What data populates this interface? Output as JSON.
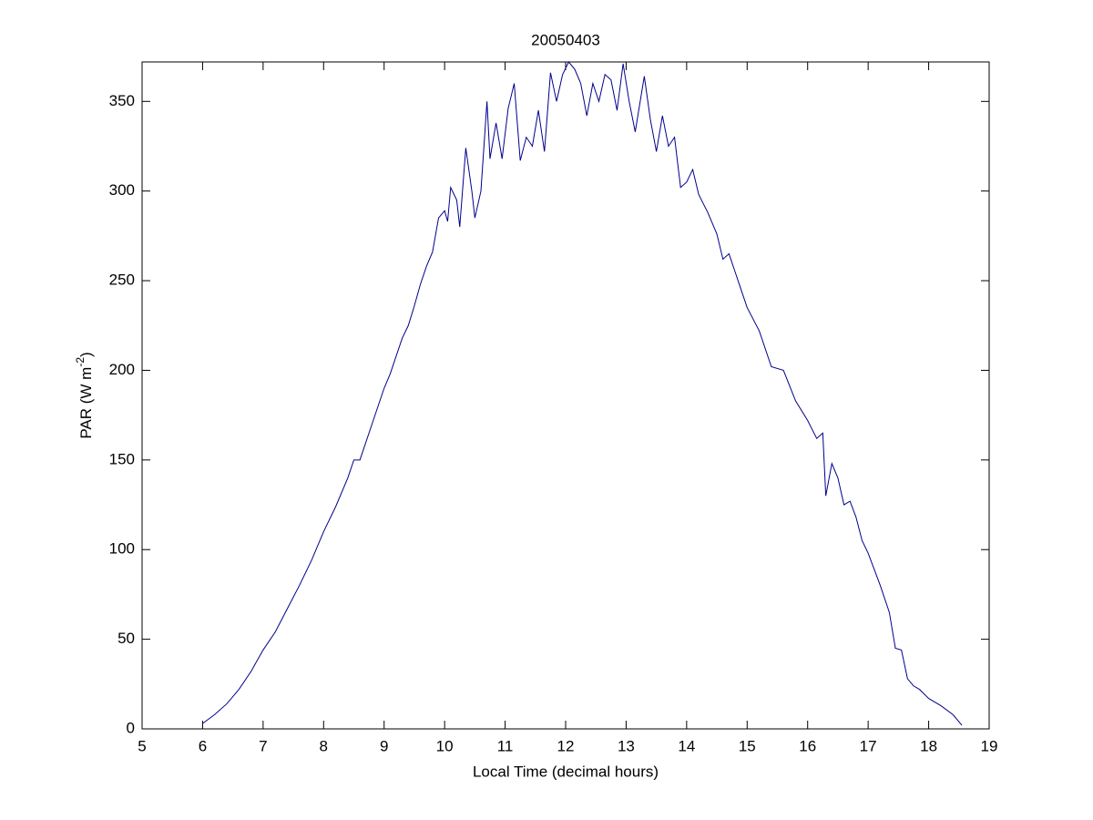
{
  "chart_data": {
    "type": "line",
    "title": "20050403",
    "x_label": "Local Time (decimal hours)",
    "y_label": [
      "PAR (W m",
      "-2",
      ")"
    ],
    "xlim": [
      5,
      19
    ],
    "xticks": [
      5,
      6,
      7,
      8,
      9,
      10,
      11,
      12,
      13,
      14,
      15,
      16,
      17,
      18,
      19
    ],
    "ylim": [
      0,
      372
    ],
    "yticks": [
      0,
      50,
      100,
      150,
      200,
      250,
      300,
      350
    ],
    "grid": false,
    "x": [
      6.0,
      6.2,
      6.4,
      6.6,
      6.8,
      7.0,
      7.2,
      7.4,
      7.6,
      7.8,
      8.0,
      8.2,
      8.4,
      8.5,
      8.6,
      8.8,
      9.0,
      9.1,
      9.2,
      9.3,
      9.4,
      9.5,
      9.6,
      9.7,
      9.8,
      9.9,
      10.0,
      10.05,
      10.1,
      10.2,
      10.25,
      10.35,
      10.45,
      10.5,
      10.6,
      10.7,
      10.75,
      10.85,
      10.95,
      11.05,
      11.15,
      11.25,
      11.35,
      11.45,
      11.55,
      11.65,
      11.75,
      11.85,
      11.95,
      12.05,
      12.15,
      12.25,
      12.35,
      12.45,
      12.55,
      12.65,
      12.75,
      12.85,
      12.95,
      13.05,
      13.15,
      13.3,
      13.4,
      13.5,
      13.6,
      13.7,
      13.8,
      13.9,
      14.0,
      14.1,
      14.2,
      14.35,
      14.5,
      14.6,
      14.7,
      14.8,
      14.9,
      15.0,
      15.2,
      15.4,
      15.6,
      15.8,
      16.0,
      16.15,
      16.25,
      16.3,
      16.4,
      16.5,
      16.6,
      16.7,
      16.8,
      16.9,
      17.0,
      17.2,
      17.35,
      17.45,
      17.55,
      17.65,
      17.75,
      17.85,
      18.0,
      18.2,
      18.4,
      18.55
    ],
    "series": [
      {
        "color": "#00008b",
        "values": [
          3,
          8,
          14,
          22,
          32,
          44,
          54,
          67,
          80,
          94,
          110,
          124,
          140,
          150,
          150,
          170,
          190,
          198,
          208,
          218,
          225,
          236,
          248,
          258,
          266,
          285,
          289,
          283,
          302,
          295,
          280,
          324,
          300,
          285,
          300,
          350,
          318,
          338,
          318,
          346,
          360,
          317,
          330,
          325,
          345,
          322,
          366,
          350,
          365,
          372,
          368,
          360,
          342,
          360,
          350,
          365,
          362,
          345,
          371,
          350,
          333,
          364,
          340,
          322,
          342,
          325,
          330,
          302,
          305,
          312,
          298,
          288,
          276,
          262,
          265,
          255,
          245,
          235,
          222,
          202,
          200,
          183,
          172,
          162,
          165,
          130,
          148,
          140,
          125,
          127,
          118,
          105,
          98,
          80,
          65,
          45,
          44,
          28,
          24,
          22,
          17,
          13,
          8,
          2
        ]
      }
    ]
  }
}
